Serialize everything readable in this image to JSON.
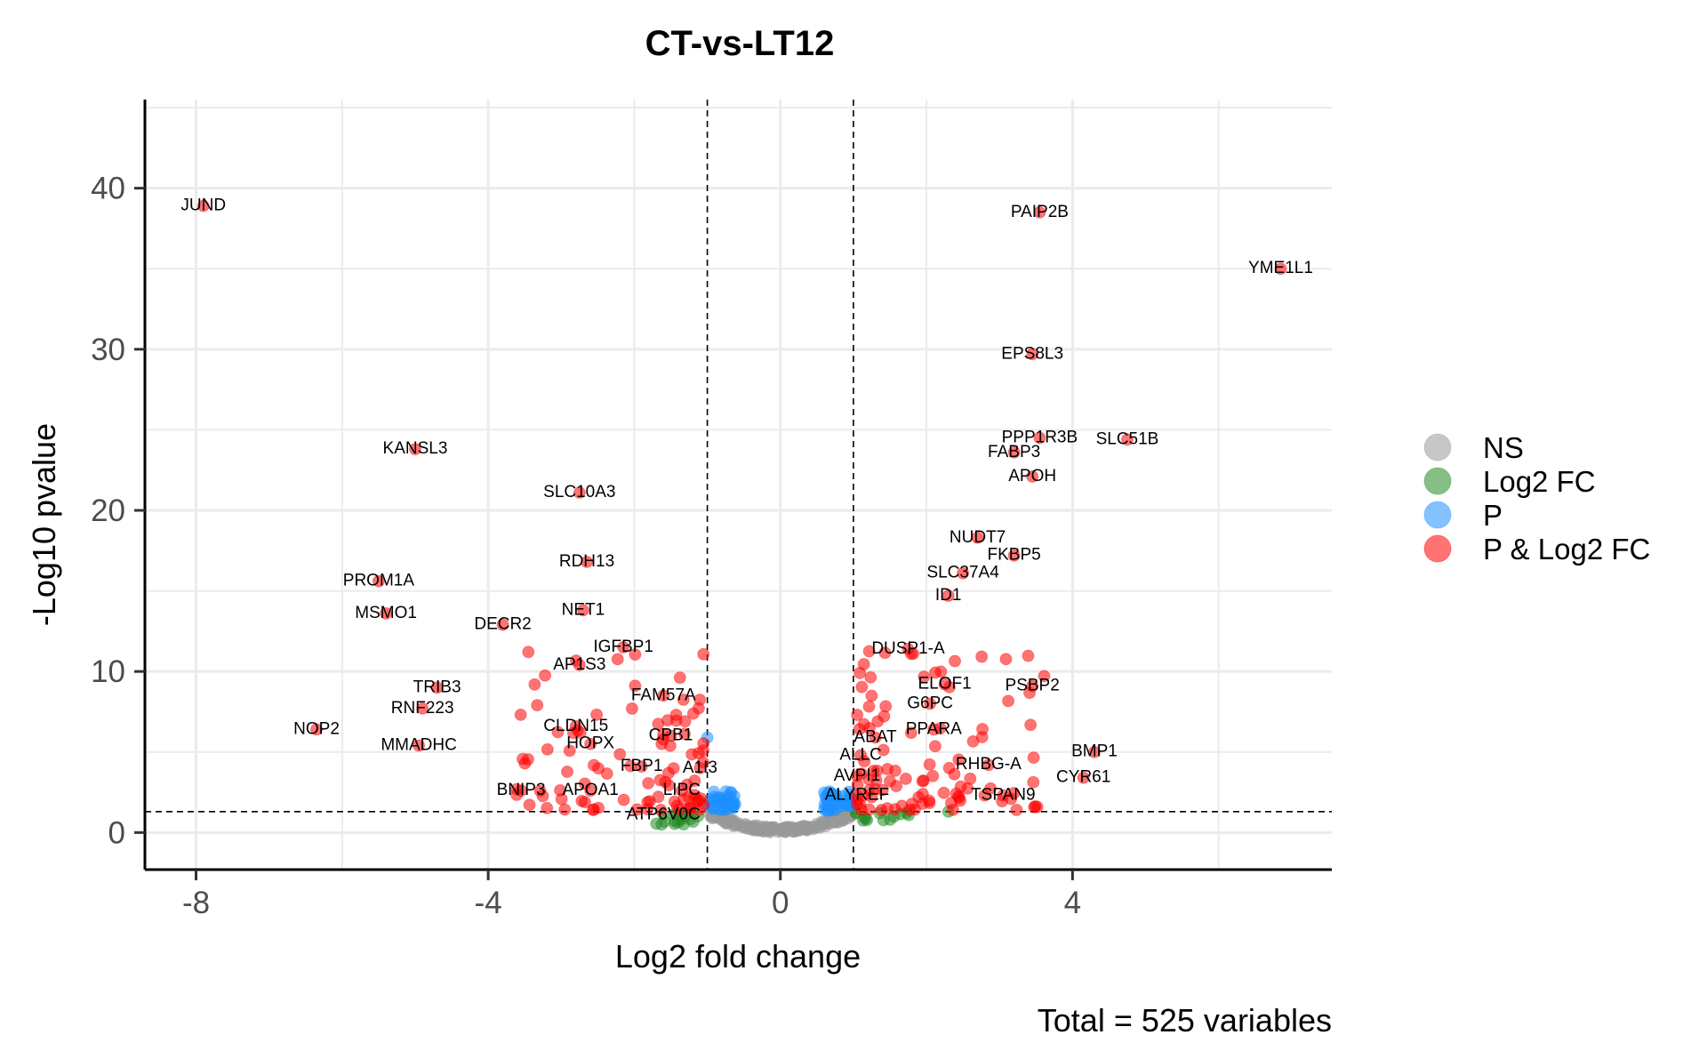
{
  "chart_data": {
    "type": "scatter",
    "title": "CT-vs-LT12",
    "xlabel": "Log2 fold change",
    "ylabel": "-Log10 pvalue",
    "caption": "Total = 525 variables",
    "xlim": [
      -8.7,
      7.55
    ],
    "ylim": [
      -2.3,
      45.5
    ],
    "xticks": [
      -8,
      -4,
      0,
      4
    ],
    "yticks": [
      0,
      10,
      20,
      30,
      40
    ],
    "grid": true,
    "legend_position": "right",
    "cutoffs": {
      "log2fc": [
        -1,
        1
      ],
      "neg_log10_p": 1.3
    },
    "series": [
      {
        "name": "NS",
        "color": "#999999"
      },
      {
        "name": "Log2 FC",
        "color": "#228B22"
      },
      {
        "name": "P",
        "color": "#1E90FF"
      },
      {
        "name": "P & Log2 FC",
        "color": "#FF0000"
      }
    ],
    "labeled_points": [
      {
        "label": "JUND",
        "x": -7.9,
        "y": 38.9
      },
      {
        "label": "PAIP2B",
        "x": 3.55,
        "y": 38.5
      },
      {
        "label": "YME1L1",
        "x": 6.85,
        "y": 35.0
      },
      {
        "label": "EPS8L3",
        "x": 3.45,
        "y": 29.7
      },
      {
        "label": "KANSL3",
        "x": -5.0,
        "y": 23.8
      },
      {
        "label": "PPP1R3B",
        "x": 3.55,
        "y": 24.5
      },
      {
        "label": "SLC51B",
        "x": 4.75,
        "y": 24.4
      },
      {
        "label": "FABP3",
        "x": 3.2,
        "y": 23.6
      },
      {
        "label": "APOH",
        "x": 3.45,
        "y": 22.1
      },
      {
        "label": "SLC10A3",
        "x": -2.75,
        "y": 21.1
      },
      {
        "label": "NUDT7",
        "x": 2.7,
        "y": 18.3
      },
      {
        "label": "FKBP5",
        "x": 3.2,
        "y": 17.2
      },
      {
        "label": "RDH13",
        "x": -2.65,
        "y": 16.8
      },
      {
        "label": "SLC37A4",
        "x": 2.5,
        "y": 16.1
      },
      {
        "label": "PROM1A",
        "x": -5.5,
        "y": 15.6
      },
      {
        "label": "ID1",
        "x": 2.3,
        "y": 14.7
      },
      {
        "label": "NET1",
        "x": -2.7,
        "y": 13.8
      },
      {
        "label": "MSMO1",
        "x": -5.4,
        "y": 13.6
      },
      {
        "label": "DECR2",
        "x": -3.8,
        "y": 12.9
      },
      {
        "label": "IGFBP1",
        "x": -2.15,
        "y": 11.5
      },
      {
        "label": "DUSP1-A",
        "x": 1.75,
        "y": 11.4
      },
      {
        "label": "AP1S3",
        "x": -2.75,
        "y": 10.4
      },
      {
        "label": "ELOF1",
        "x": 2.25,
        "y": 9.2
      },
      {
        "label": "PSBP2",
        "x": 3.45,
        "y": 9.1
      },
      {
        "label": "TRIB3",
        "x": -4.7,
        "y": 9.0
      },
      {
        "label": "FAM57A",
        "x": -1.6,
        "y": 8.5
      },
      {
        "label": "G6PC",
        "x": 2.05,
        "y": 8.0
      },
      {
        "label": "RNF223",
        "x": -4.9,
        "y": 7.7
      },
      {
        "label": "CLDN15",
        "x": -2.8,
        "y": 6.6
      },
      {
        "label": "PPARA",
        "x": 2.1,
        "y": 6.4
      },
      {
        "label": "NOP2",
        "x": -6.35,
        "y": 6.4
      },
      {
        "label": "CPB1",
        "x": -1.5,
        "y": 6.0
      },
      {
        "label": "ABAT",
        "x": 1.3,
        "y": 5.9
      },
      {
        "label": "HOPX",
        "x": -2.6,
        "y": 5.5
      },
      {
        "label": "MMADHC",
        "x": -4.95,
        "y": 5.4
      },
      {
        "label": "BMP1",
        "x": 4.3,
        "y": 5.0
      },
      {
        "label": "ALLC",
        "x": 1.1,
        "y": 4.8
      },
      {
        "label": "RHBG-A",
        "x": 2.85,
        "y": 4.2
      },
      {
        "label": "FBP1",
        "x": -1.9,
        "y": 4.1
      },
      {
        "label": "A1I3",
        "x": -1.1,
        "y": 4.0
      },
      {
        "label": "CYR61",
        "x": 4.15,
        "y": 3.4
      },
      {
        "label": "AVPI1",
        "x": 1.05,
        "y": 3.5
      },
      {
        "label": "LIPC",
        "x": -1.35,
        "y": 2.6
      },
      {
        "label": "BNIP3",
        "x": -3.55,
        "y": 2.6
      },
      {
        "label": "APOA1",
        "x": -2.6,
        "y": 2.6
      },
      {
        "label": "ALYREF",
        "x": 1.05,
        "y": 2.3
      },
      {
        "label": "TSPAN9",
        "x": 3.05,
        "y": 2.3
      },
      {
        "label": "ATP6V0C",
        "x": -1.6,
        "y": 1.1
      }
    ]
  }
}
